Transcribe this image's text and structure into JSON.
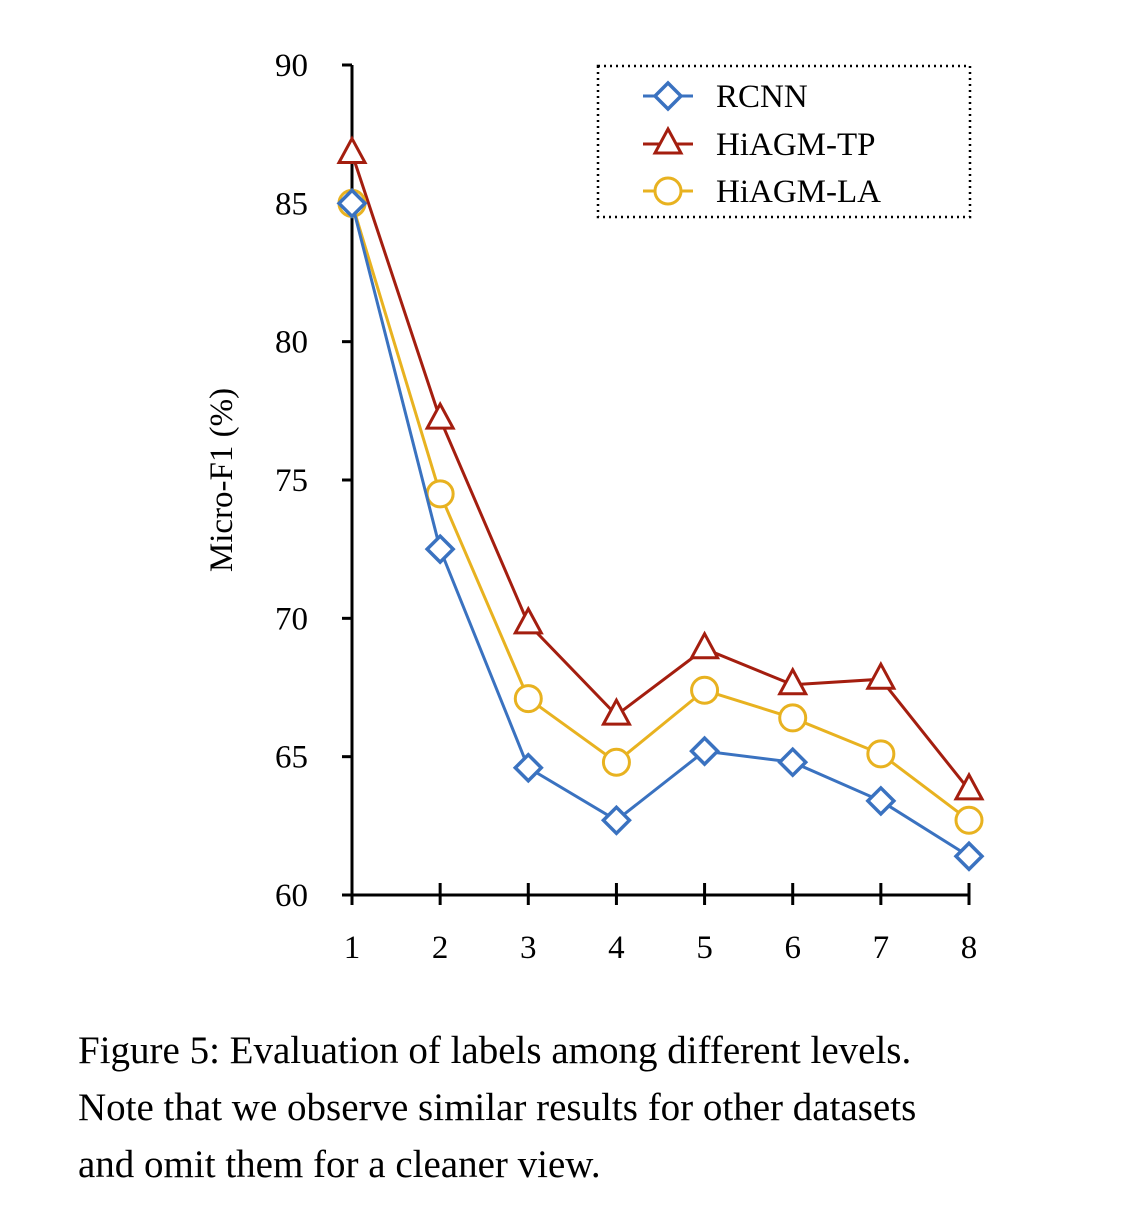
{
  "chart_data": {
    "type": "line",
    "title": "",
    "xlabel": "",
    "ylabel": "Micro-F1 (%)",
    "categories": [
      "1",
      "2",
      "3",
      "4",
      "5",
      "6",
      "7",
      "8"
    ],
    "x": [
      1,
      2,
      3,
      4,
      5,
      6,
      7,
      8
    ],
    "ylim": [
      60,
      90
    ],
    "yticks": [
      "60",
      "65",
      "70",
      "75",
      "80",
      "85",
      "90"
    ],
    "grid": false,
    "legend_position": "top-right",
    "series": [
      {
        "name": "RCNN",
        "marker": "diamond",
        "color": "#3a72c0",
        "values": [
          85.0,
          72.5,
          64.6,
          62.7,
          65.2,
          64.8,
          63.4,
          61.4
        ]
      },
      {
        "name": "HiAGM-TP",
        "marker": "triangle",
        "color": "#a41e0f",
        "values": [
          86.8,
          77.2,
          69.8,
          66.5,
          68.9,
          67.6,
          67.8,
          63.8
        ]
      },
      {
        "name": "HiAGM-LA",
        "marker": "circle",
        "color": "#e8b220",
        "values": [
          85.0,
          74.5,
          67.1,
          64.8,
          67.4,
          66.4,
          65.1,
          62.7
        ]
      }
    ]
  },
  "caption": {
    "line1": "Figure 5: Evaluation of labels among different levels.",
    "line2": "Note that we observe similar results for other datasets",
    "line3": "and omit them for a cleaner view."
  }
}
